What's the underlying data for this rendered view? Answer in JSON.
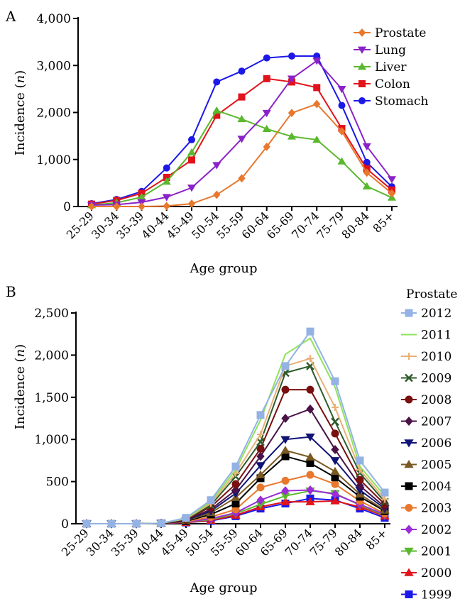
{
  "chart_data": [
    {
      "panel_label": "A",
      "type": "line",
      "xlabel": "Age group",
      "ylabel": "Incidence (n)",
      "ylabel_main": "Incidence (",
      "ylabel_var": "n",
      "ylabel_close": ")",
      "ylim": [
        0,
        4000
      ],
      "yticks": [
        0,
        1000,
        2000,
        3000,
        4000
      ],
      "ytick_labels": [
        "0",
        "1,000",
        "2,000",
        "3,000",
        "4,000"
      ],
      "categories": [
        "25-29",
        "30-34",
        "35-39",
        "40-44",
        "45-49",
        "50-54",
        "55-59",
        "60-64",
        "65-69",
        "70-74",
        "75-79",
        "80-84",
        "85+"
      ],
      "legend_position": "top-right",
      "grid": false,
      "series": [
        {
          "name": "Prostate",
          "color": "#E8782D",
          "marker": "diamond",
          "values": [
            0,
            0,
            0,
            10,
            60,
            250,
            600,
            1270,
            1990,
            2180,
            1600,
            720,
            280
          ]
        },
        {
          "name": "Lung",
          "color": "#8B22C8",
          "marker": "triangle-down",
          "values": [
            30,
            40,
            90,
            200,
            400,
            880,
            1440,
            1990,
            2720,
            3100,
            2500,
            1280,
            580
          ]
        },
        {
          "name": "Liver",
          "color": "#5BB82E",
          "marker": "triangle-up",
          "values": [
            30,
            80,
            200,
            530,
            1150,
            2040,
            1860,
            1650,
            1490,
            1420,
            960,
            430,
            190
          ]
        },
        {
          "name": "Colon",
          "color": "#E1131B",
          "marker": "square",
          "values": [
            50,
            130,
            280,
            620,
            990,
            1940,
            2330,
            2720,
            2650,
            2530,
            1660,
            800,
            350
          ]
        },
        {
          "name": "Stomach",
          "color": "#1C18E8",
          "marker": "circle",
          "values": [
            60,
            150,
            320,
            820,
            1420,
            2650,
            2880,
            3160,
            3200,
            3200,
            2150,
            940,
            420
          ]
        }
      ]
    },
    {
      "panel_label": "B",
      "type": "line",
      "xlabel": "Age group",
      "ylabel": "Incidence (n)",
      "ylabel_main": "Incidence (",
      "ylabel_var": "n",
      "ylabel_close": ")",
      "ylim": [
        0,
        2500
      ],
      "yticks": [
        0,
        500,
        1000,
        1500,
        2000,
        2500
      ],
      "ytick_labels": [
        "0",
        "500",
        "1,000",
        "1,500",
        "2,000",
        "2,500"
      ],
      "categories": [
        "25-29",
        "30-34",
        "35-39",
        "40-44",
        "45-49",
        "50-54",
        "55-59",
        "60-64",
        "65-69",
        "70-74",
        "75-79",
        "80-84",
        "85+"
      ],
      "legend_title": "Prostate",
      "legend_position": "right",
      "grid": false,
      "series": [
        {
          "name": "2012",
          "color": "#94B3E4",
          "marker": "square",
          "values": [
            0,
            0,
            0,
            5,
            70,
            280,
            680,
            1290,
            1870,
            2280,
            1690,
            750,
            370
          ]
        },
        {
          "name": "2011",
          "color": "#8FE35A",
          "marker": "none",
          "values": [
            0,
            0,
            0,
            5,
            65,
            260,
            640,
            1230,
            2010,
            2200,
            1620,
            680,
            330
          ]
        },
        {
          "name": "2010",
          "color": "#E9B177",
          "marker": "plus",
          "values": [
            0,
            0,
            0,
            5,
            60,
            240,
            600,
            1060,
            1870,
            1960,
            1380,
            640,
            290
          ]
        },
        {
          "name": "2009",
          "color": "#2E5B2B",
          "marker": "x",
          "values": [
            0,
            0,
            0,
            5,
            55,
            220,
            560,
            970,
            1790,
            1870,
            1210,
            600,
            260
          ]
        },
        {
          "name": "2008",
          "color": "#7A0F0F",
          "marker": "circle",
          "values": [
            0,
            0,
            0,
            5,
            50,
            200,
            470,
            890,
            1590,
            1590,
            1070,
            520,
            230
          ]
        },
        {
          "name": "2007",
          "color": "#4A1247",
          "marker": "diamond",
          "values": [
            0,
            0,
            0,
            5,
            45,
            170,
            400,
            800,
            1250,
            1360,
            880,
            450,
            200
          ]
        },
        {
          "name": "2006",
          "color": "#111475",
          "marker": "triangle-down",
          "values": [
            0,
            0,
            0,
            5,
            40,
            150,
            360,
            690,
            1000,
            1030,
            750,
            400,
            180
          ]
        },
        {
          "name": "2005",
          "color": "#7A5A22",
          "marker": "triangle-up",
          "values": [
            0,
            0,
            0,
            5,
            35,
            130,
            310,
            580,
            870,
            790,
            620,
            350,
            160
          ]
        },
        {
          "name": "2004",
          "color": "#000000",
          "marker": "square",
          "values": [
            0,
            0,
            0,
            5,
            30,
            110,
            240,
            540,
            800,
            720,
            550,
            320,
            150
          ]
        },
        {
          "name": "2003",
          "color": "#E8782D",
          "marker": "circle",
          "values": [
            0,
            0,
            0,
            5,
            25,
            80,
            170,
            430,
            510,
            580,
            470,
            270,
            120
          ]
        },
        {
          "name": "2002",
          "color": "#9B2CD6",
          "marker": "diamond",
          "values": [
            0,
            0,
            0,
            5,
            20,
            60,
            130,
            280,
            390,
            400,
            350,
            230,
            110
          ]
        },
        {
          "name": "2001",
          "color": "#5BB82E",
          "marker": "triangle-down",
          "values": [
            0,
            0,
            0,
            5,
            20,
            50,
            120,
            230,
            330,
            390,
            360,
            220,
            100
          ]
        },
        {
          "name": "2000",
          "color": "#E1131B",
          "marker": "triangle-up",
          "values": [
            0,
            0,
            0,
            5,
            15,
            40,
            100,
            200,
            260,
            260,
            270,
            200,
            90
          ]
        },
        {
          "name": "1999",
          "color": "#1C18E8",
          "marker": "square",
          "values": [
            0,
            0,
            0,
            5,
            15,
            35,
            90,
            180,
            240,
            300,
            280,
            180,
            70
          ]
        }
      ]
    }
  ]
}
